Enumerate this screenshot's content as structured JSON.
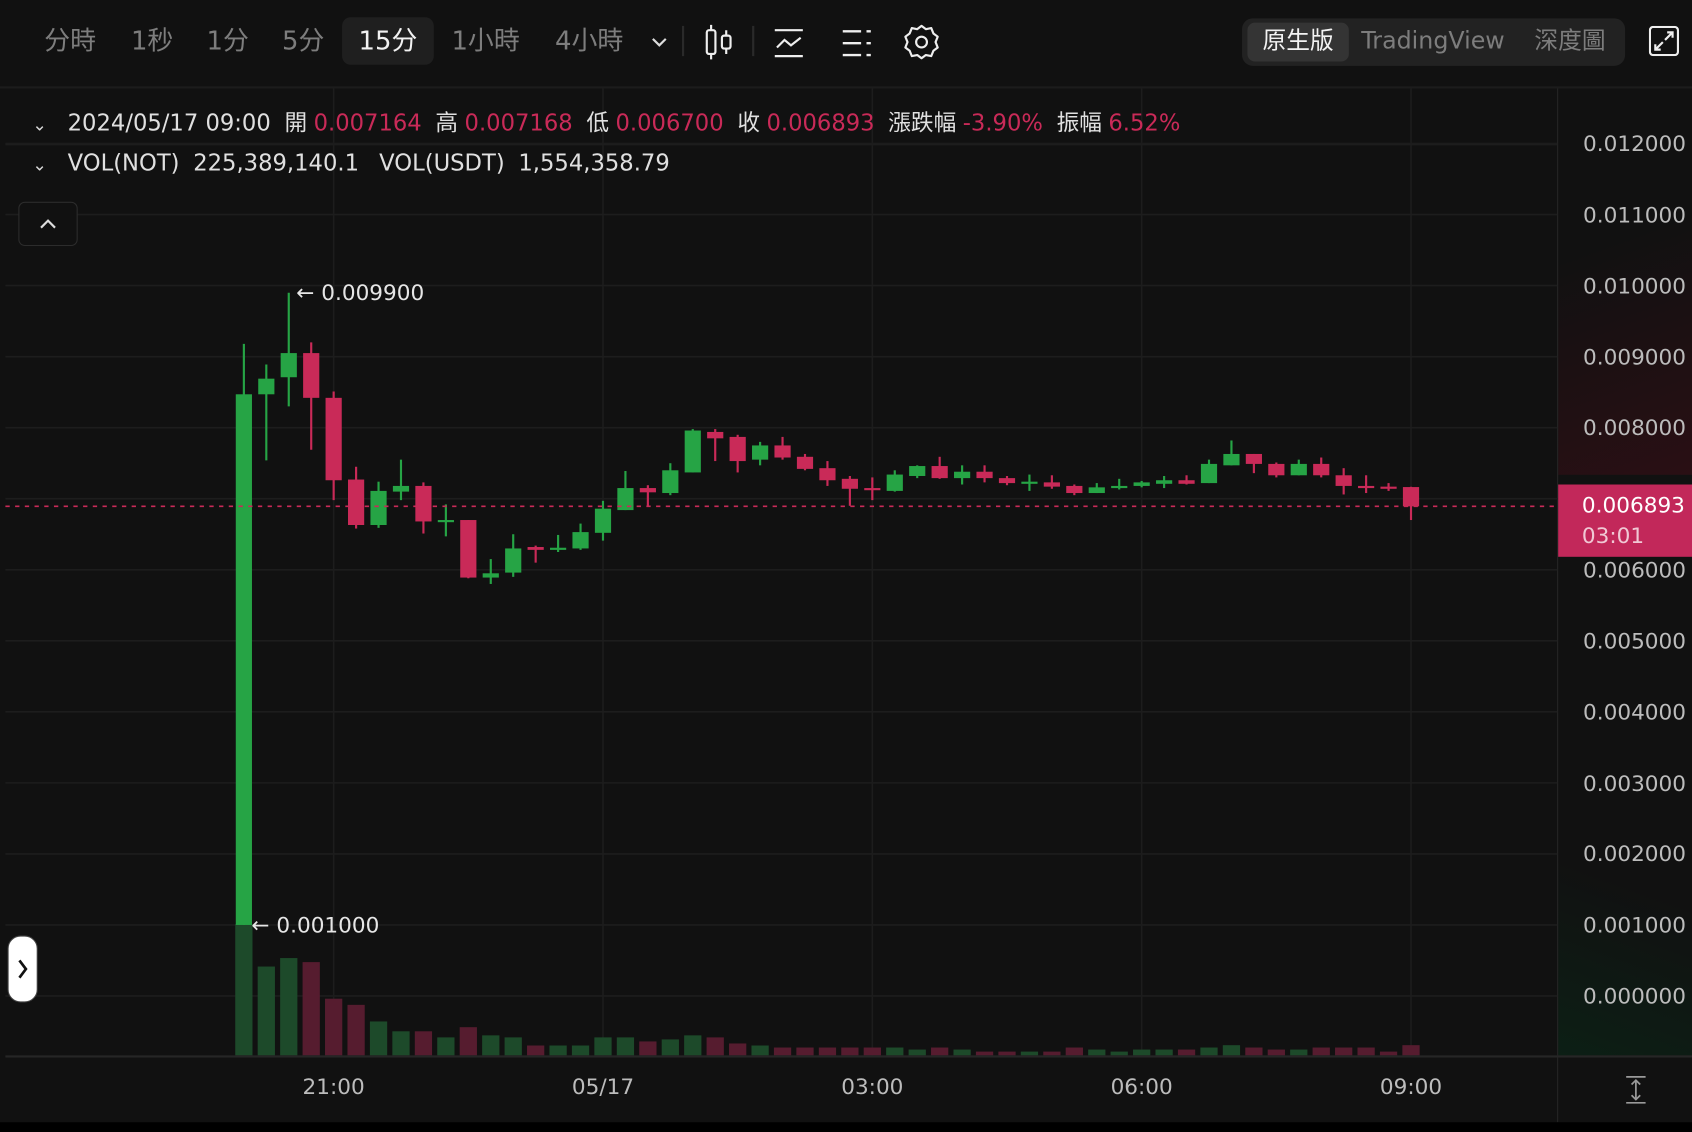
{
  "toolbar": {
    "intervals": [
      {
        "label": "分時",
        "selected": false
      },
      {
        "label": "1秒",
        "selected": false
      },
      {
        "label": "1分",
        "selected": false
      },
      {
        "label": "5分",
        "selected": false
      },
      {
        "label": "15分",
        "selected": true
      },
      {
        "label": "1小時",
        "selected": false
      },
      {
        "label": "4小時",
        "selected": false
      }
    ],
    "icons": [
      "chevron-down-icon",
      "candlestick-type-icon",
      "indicator-icon",
      "list-settings-icon",
      "gear-icon"
    ],
    "views": [
      {
        "label": "原生版",
        "selected": true
      },
      {
        "label": "TradingView",
        "selected": false
      },
      {
        "label": "深度圖",
        "selected": false
      }
    ],
    "fullscreen_icon": "expand-icon"
  },
  "ohlc_info": {
    "datetime": "2024/05/17 09:00",
    "open_label": "開",
    "open": "0.007164",
    "high_label": "高",
    "high": "0.007168",
    "low_label": "低",
    "low": "0.006700",
    "close_label": "收",
    "close": "0.006893",
    "change_label": "漲跌幅",
    "change": "-3.90%",
    "amplitude_label": "振幅",
    "amplitude": "6.52%"
  },
  "volume_info": {
    "vol_base_label": "VOL(NOT)",
    "vol_base": "225,389,140.1",
    "vol_quote_label": "VOL(USDT)",
    "vol_quote": "1,554,358.79"
  },
  "current_price": {
    "value": "0.006893",
    "countdown": "03:01"
  },
  "colors": {
    "up": "#26a445",
    "down": "#c92a58",
    "up_volume": "#1d4a2a",
    "down_volume": "#561c2f",
    "background": "#111111",
    "grid": "#1d1d1d"
  },
  "chart_data": {
    "type": "candlestick",
    "interval": "15分",
    "x": [
      "2024/05/16 20:00",
      "2024/05/16 20:15",
      "2024/05/16 20:30",
      "2024/05/16 20:45",
      "2024/05/16 21:00",
      "2024/05/16 21:15",
      "2024/05/16 21:30",
      "2024/05/16 21:45",
      "2024/05/16 22:00",
      "2024/05/16 22:15",
      "2024/05/16 22:30",
      "2024/05/16 22:45",
      "2024/05/16 23:00",
      "2024/05/16 23:15",
      "2024/05/16 23:30",
      "2024/05/16 23:45",
      "2024/05/17 00:00",
      "2024/05/17 00:15",
      "2024/05/17 00:30",
      "2024/05/17 00:45",
      "2024/05/17 01:00",
      "2024/05/17 01:15",
      "2024/05/17 01:30",
      "2024/05/17 01:45",
      "2024/05/17 02:00",
      "2024/05/17 02:15",
      "2024/05/17 02:30",
      "2024/05/17 02:45",
      "2024/05/17 03:00",
      "2024/05/17 03:15",
      "2024/05/17 03:30",
      "2024/05/17 03:45",
      "2024/05/17 04:00",
      "2024/05/17 04:15",
      "2024/05/17 04:30",
      "2024/05/17 04:45",
      "2024/05/17 05:00",
      "2024/05/17 05:15",
      "2024/05/17 05:30",
      "2024/05/17 05:45",
      "2024/05/17 06:00",
      "2024/05/17 06:15",
      "2024/05/17 06:30",
      "2024/05/17 06:45",
      "2024/05/17 07:00",
      "2024/05/17 07:15",
      "2024/05/17 07:30",
      "2024/05/17 07:45",
      "2024/05/17 08:00",
      "2024/05/17 08:15",
      "2024/05/17 08:30",
      "2024/05/17 08:45",
      "2024/05/17 09:00"
    ],
    "ohlc": [
      [
        0.001,
        0.00918,
        0.001,
        0.00847
      ],
      [
        0.00847,
        0.00889,
        0.00754,
        0.00869
      ],
      [
        0.00871,
        0.0099,
        0.0083,
        0.00905
      ],
      [
        0.00905,
        0.0092,
        0.00769,
        0.00842
      ],
      [
        0.00842,
        0.00851,
        0.00698,
        0.00726
      ],
      [
        0.00727,
        0.00745,
        0.00658,
        0.00663
      ],
      [
        0.00663,
        0.00724,
        0.00659,
        0.00711
      ],
      [
        0.0071,
        0.00755,
        0.00698,
        0.00718
      ],
      [
        0.00718,
        0.00723,
        0.00651,
        0.00668
      ],
      [
        0.00668,
        0.00692,
        0.00647,
        0.0067
      ],
      [
        0.0067,
        0.0067,
        0.00588,
        0.00589
      ],
      [
        0.00589,
        0.00615,
        0.0058,
        0.00595
      ],
      [
        0.00596,
        0.0065,
        0.0059,
        0.0063
      ],
      [
        0.00632,
        0.00634,
        0.0061,
        0.00628
      ],
      [
        0.00629,
        0.00649,
        0.00625,
        0.00631
      ],
      [
        0.0063,
        0.00665,
        0.00628,
        0.00653
      ],
      [
        0.00652,
        0.00697,
        0.00641,
        0.00686
      ],
      [
        0.00684,
        0.00739,
        0.00684,
        0.00715
      ],
      [
        0.00715,
        0.00719,
        0.00689,
        0.00709
      ],
      [
        0.00708,
        0.0075,
        0.00705,
        0.0074
      ],
      [
        0.00737,
        0.00798,
        0.00737,
        0.00796
      ],
      [
        0.00794,
        0.00798,
        0.00753,
        0.00785
      ],
      [
        0.00787,
        0.0079,
        0.00737,
        0.00753
      ],
      [
        0.00755,
        0.0078,
        0.00747,
        0.00775
      ],
      [
        0.00775,
        0.00787,
        0.00755,
        0.00758
      ],
      [
        0.00759,
        0.00763,
        0.0074,
        0.00742
      ],
      [
        0.00743,
        0.00753,
        0.00718,
        0.00726
      ],
      [
        0.00728,
        0.00732,
        0.0069,
        0.00714
      ],
      [
        0.00715,
        0.0073,
        0.00698,
        0.00713
      ],
      [
        0.00711,
        0.0074,
        0.0071,
        0.00734
      ],
      [
        0.00732,
        0.00747,
        0.00729,
        0.00746
      ],
      [
        0.00746,
        0.00759,
        0.00728,
        0.00729
      ],
      [
        0.00729,
        0.00747,
        0.0072,
        0.00738
      ],
      [
        0.00738,
        0.00747,
        0.00723,
        0.00729
      ],
      [
        0.00729,
        0.00732,
        0.00719,
        0.00722
      ],
      [
        0.00722,
        0.00734,
        0.00711,
        0.00724
      ],
      [
        0.00723,
        0.00733,
        0.00714,
        0.00717
      ],
      [
        0.00718,
        0.0072,
        0.00705,
        0.00708
      ],
      [
        0.00708,
        0.00722,
        0.00708,
        0.00716
      ],
      [
        0.00716,
        0.00728,
        0.00713,
        0.00718
      ],
      [
        0.00718,
        0.00725,
        0.00716,
        0.00723
      ],
      [
        0.00721,
        0.00732,
        0.00715,
        0.00726
      ],
      [
        0.00726,
        0.00733,
        0.0072,
        0.00721
      ],
      [
        0.00722,
        0.00755,
        0.00722,
        0.00749
      ],
      [
        0.00747,
        0.00782,
        0.00747,
        0.00763
      ],
      [
        0.00763,
        0.00763,
        0.00736,
        0.00749
      ],
      [
        0.00749,
        0.00751,
        0.0073,
        0.00733
      ],
      [
        0.00733,
        0.00755,
        0.00733,
        0.00749
      ],
      [
        0.00749,
        0.00758,
        0.0073,
        0.00733
      ],
      [
        0.00733,
        0.00743,
        0.00706,
        0.00718
      ],
      [
        0.00718,
        0.00733,
        0.00708,
        0.00717
      ],
      [
        0.00717,
        0.00722,
        0.00711,
        0.00715
      ],
      [
        0.007164,
        0.007168,
        0.0067,
        0.006893
      ]
    ],
    "volume": [
      2908000000,
      1968000000,
      2156000000,
      2066000000,
      1255000000,
      1119000000,
      751000000,
      533000000,
      533000000,
      398000000,
      624000000,
      443000000,
      398000000,
      218000000,
      218000000,
      218000000,
      398000000,
      398000000,
      308000000,
      353000000,
      443000000,
      398000000,
      263000000,
      218000000,
      173000000,
      173000000,
      173000000,
      173000000,
      173000000,
      173000000,
      128000000,
      173000000,
      128000000,
      83000000,
      83000000,
      83000000,
      83000000,
      173000000,
      128000000,
      83000000,
      128000000,
      128000000,
      128000000,
      173000000,
      225000000,
      173000000,
      128000000,
      128000000,
      173000000,
      173000000,
      173000000,
      83000000,
      225389140.1
    ],
    "y_ticks": [
      {
        "label": "0.012000",
        "value": 0.012
      },
      {
        "label": "0.011000",
        "value": 0.011
      },
      {
        "label": "0.010000",
        "value": 0.01
      },
      {
        "label": "0.009000",
        "value": 0.009
      },
      {
        "label": "0.008000",
        "value": 0.008
      },
      {
        "label": "0.006000",
        "value": 0.006
      },
      {
        "label": "0.005000",
        "value": 0.005
      },
      {
        "label": "0.004000",
        "value": 0.004
      },
      {
        "label": "0.003000",
        "value": 0.003
      },
      {
        "label": "0.002000",
        "value": 0.002
      },
      {
        "label": "0.001000",
        "value": 0.001
      },
      {
        "label": "0.000000",
        "value": 0.0
      }
    ],
    "x_ticks": [
      {
        "label": "21:00",
        "at": "2024/05/16 21:00"
      },
      {
        "label": "05/17",
        "at": "2024/05/17 00:00"
      },
      {
        "label": "03:00",
        "at": "2024/05/17 03:00"
      },
      {
        "label": "06:00",
        "at": "2024/05/17 06:00"
      },
      {
        "label": "09:00",
        "at": "2024/05/17 09:00"
      }
    ],
    "annotations": [
      {
        "label": "← 0.009900",
        "at": "2024/05/16 20:30",
        "value": 0.0099
      },
      {
        "label": "← 0.001000",
        "at": "2024/05/16 20:00",
        "value": 0.001
      }
    ],
    "last_price_line": 0.006893,
    "ylim": [
      0,
      0.012
    ],
    "grid": true
  }
}
